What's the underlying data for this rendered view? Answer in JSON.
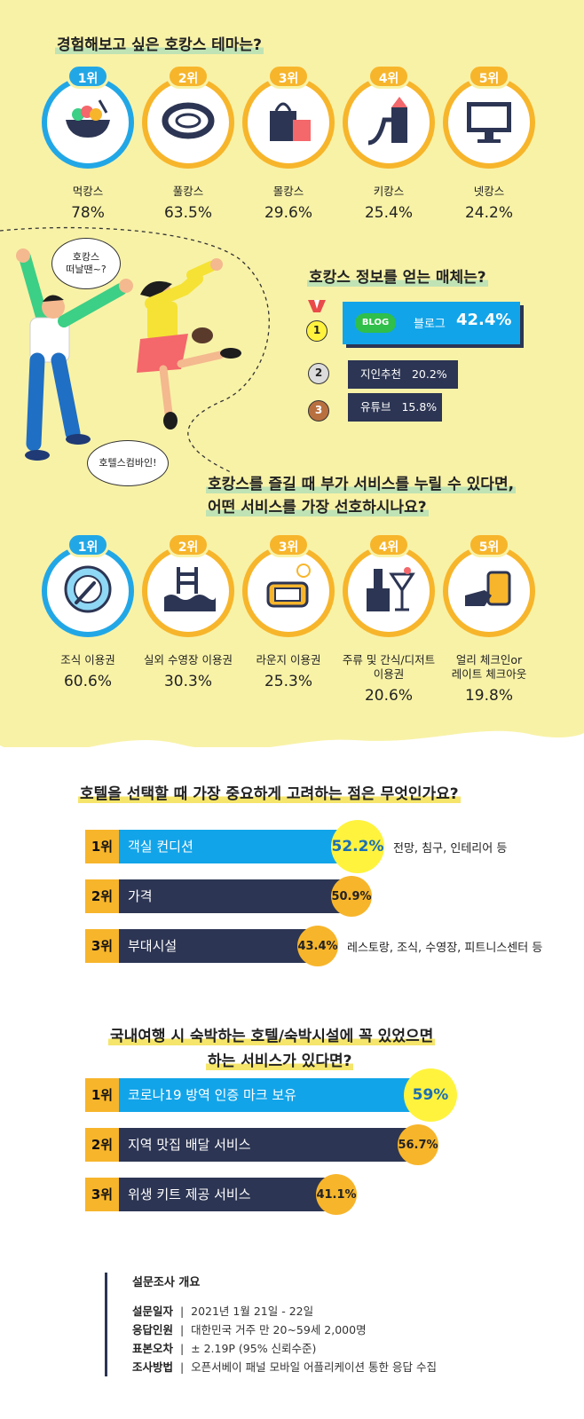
{
  "section1": {
    "title": "경험해보고 싶은 호캉스 테마는?",
    "items": [
      {
        "rank": "1위",
        "label": "먹캉스",
        "pct": "78%",
        "icon": "food-bowl-icon"
      },
      {
        "rank": "2위",
        "label": "풀캉스",
        "pct": "63.5%",
        "icon": "swim-ring-icon"
      },
      {
        "rank": "3위",
        "label": "몰캉스",
        "pct": "29.6%",
        "icon": "shopping-bag-icon"
      },
      {
        "rank": "4위",
        "label": "키캉스",
        "pct": "25.4%",
        "icon": "playground-slide-icon"
      },
      {
        "rank": "5위",
        "label": "넷캉스",
        "pct": "24.2%",
        "icon": "monitor-icon"
      }
    ]
  },
  "bubbles": {
    "left_top": "호캉스\n떠날땐~?",
    "left_bottom": "호텔스컴바인!"
  },
  "media": {
    "title": "호캉스 정보를 얻는 매체는?",
    "items": [
      {
        "medal": "1",
        "badge": "BLOG",
        "label": "블로그",
        "pct": "42.4%"
      },
      {
        "medal": "2",
        "label": "지인추천",
        "pct": "20.2%"
      },
      {
        "medal": "3",
        "label": "유튜브",
        "pct": "15.8%"
      }
    ]
  },
  "section2": {
    "title_line1": "호캉스를 즐길 때 부가 서비스를 누릴 수 있다면,",
    "title_line2": "어떤 서비스를 가장 선호하시나요?",
    "items": [
      {
        "rank": "1위",
        "label": "조식 이용권",
        "pct": "60.6%",
        "icon": "plate-fork-icon"
      },
      {
        "rank": "2위",
        "label": "실외 수영장 이용권",
        "pct": "30.3%",
        "icon": "pool-ladder-icon"
      },
      {
        "rank": "3위",
        "label": "라운지 이용권",
        "pct": "25.3%",
        "icon": "armchair-clock-icon"
      },
      {
        "rank": "4위",
        "label": "주류 및 간식/디저트\n이용권",
        "pct": "20.6%",
        "icon": "champagne-cocktail-icon"
      },
      {
        "rank": "5위",
        "label": "얼리 체크인or\n레이트 체크아웃",
        "pct": "19.8%",
        "icon": "luggage-hand-icon"
      }
    ]
  },
  "section3": {
    "title": "호텔을 선택할 때 가장 중요하게 고려하는 점은 무엇인가요?",
    "items": [
      {
        "rank": "1위",
        "label": "객실 컨디션",
        "value": 52.2,
        "pct": "52.2%",
        "note": "전망, 침구, 인테리어 등"
      },
      {
        "rank": "2위",
        "label": "가격",
        "value": 50.9,
        "pct": "50.9%",
        "note": ""
      },
      {
        "rank": "3위",
        "label": "부대시설",
        "value": 43.4,
        "pct": "43.4%",
        "note": "레스토랑, 조식, 수영장, 피트니스센터 등"
      }
    ]
  },
  "section4": {
    "title_line1": "국내여행 시 숙박하는 호텔/숙박시설에 꼭 있었으면",
    "title_line2": "하는 서비스가 있다면?",
    "items": [
      {
        "rank": "1위",
        "label": "코로나19 방역 인증 마크 보유",
        "value": 59,
        "pct": "59%"
      },
      {
        "rank": "2위",
        "label": "지역 맛집 배달 서비스",
        "value": 56.7,
        "pct": "56.7%"
      },
      {
        "rank": "3위",
        "label": "위생 키트 제공 서비스",
        "value": 41.1,
        "pct": "41.1%"
      }
    ]
  },
  "survey": {
    "title": "설문조사 개요",
    "rows": [
      {
        "key": "설문일자",
        "value": "2021년 1월 21일 - 22일"
      },
      {
        "key": "응답인원",
        "value": "대한민국 거주 만 20~59세 2,000명"
      },
      {
        "key": "표본오차",
        "value": "± 2.19P (95% 신뢰수준)"
      },
      {
        "key": "조사방법",
        "value": "오픈서베이 패널 모바일 어플리케이션 통한 응답 수집"
      }
    ]
  },
  "colors": {
    "yellow_bg": "#f8f2a7",
    "orange": "#f7b52b",
    "blue": "#22a7e6",
    "navy": "#2c3553",
    "bright_yellow": "#fff33e"
  }
}
